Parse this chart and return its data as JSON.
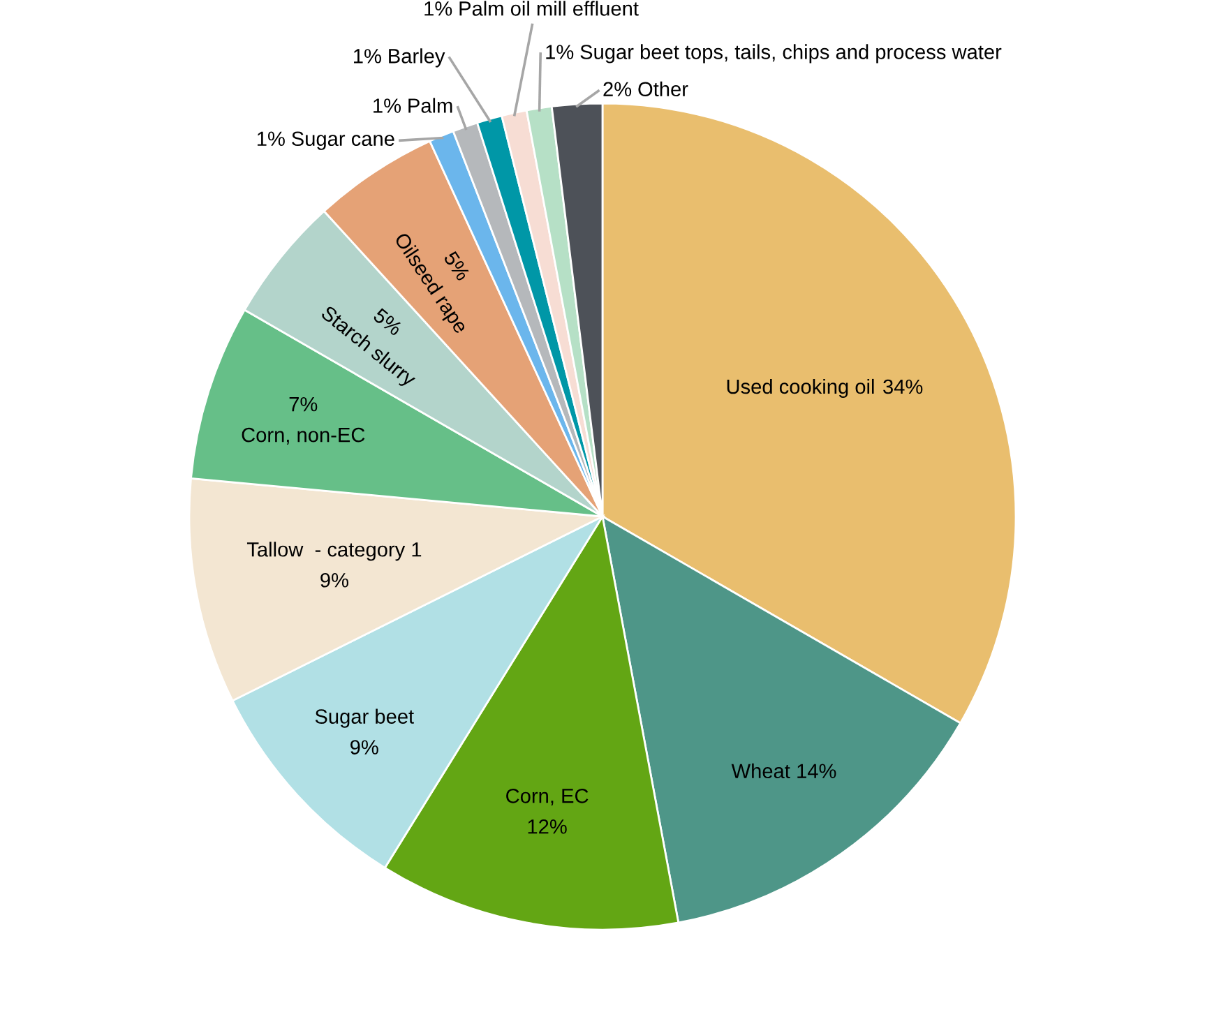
{
  "chart_data": {
    "type": "pie",
    "categories": [
      "Used cooking oil",
      "Wheat",
      "Corn, EC",
      "Sugar beet",
      "Tallow  - category 1",
      "Corn, non-EC",
      "Starch slurry",
      "Oilseed rape",
      "Sugar cane",
      "Palm",
      "Barley",
      "Palm oil mill effluent",
      "Sugar beet tops, tails, chips and process water",
      "Other"
    ],
    "values": [
      34,
      14,
      12,
      9,
      9,
      7,
      5,
      5,
      1,
      1,
      1,
      1,
      1,
      2
    ],
    "colors": [
      "#e9be6e",
      "#4e9688",
      "#63a614",
      "#b1e0e5",
      "#f3e6d2",
      "#66bf88",
      "#b3d4cb",
      "#e5a276",
      "#6bb6ec",
      "#b5b8bb",
      "#0097a7",
      "#f7ddd4",
      "#b6e0c6",
      "#4d5158"
    ],
    "value_labels": [
      "34%",
      "14%",
      "12%",
      "9%",
      "9%",
      "7%",
      "5%",
      "5%",
      "1%",
      "1%",
      "1%",
      "1%",
      "1%",
      "2%"
    ]
  }
}
